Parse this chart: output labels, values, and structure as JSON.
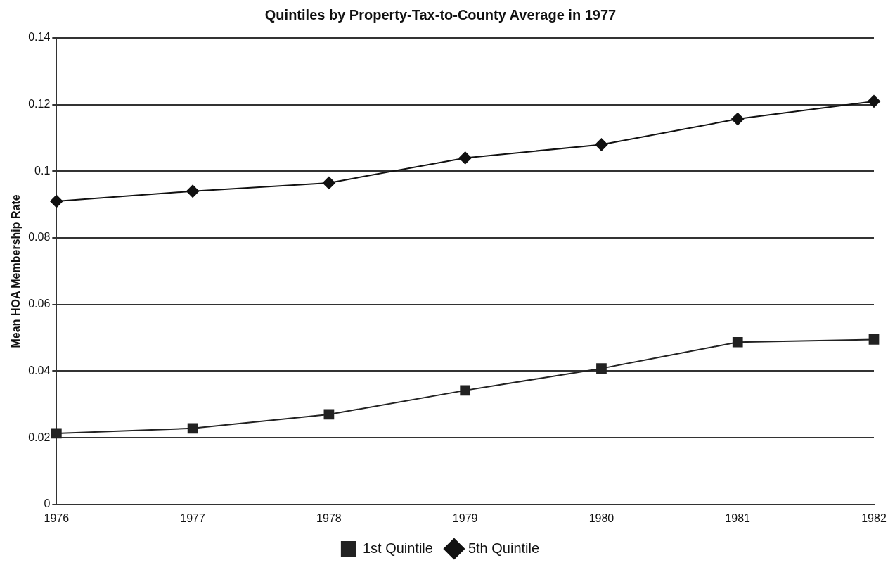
{
  "chart_data": {
    "type": "line",
    "title": "Quintiles by Property-Tax-to-County Average in 1977",
    "ylabel": "Mean HOA Membership Rate",
    "categories": [
      "1976",
      "1977",
      "1978",
      "1979",
      "1980",
      "1981",
      "1982"
    ],
    "series": [
      {
        "name": "1st Quintile",
        "color": "#222222",
        "marker": "square",
        "values": [
          0.0213,
          0.0228,
          0.027,
          0.0342,
          0.0408,
          0.0487,
          0.0495
        ]
      },
      {
        "name": "5th Quintile",
        "color": "#111111",
        "marker": "diamond",
        "values": [
          0.091,
          0.094,
          0.0965,
          0.104,
          0.108,
          0.1157,
          0.121
        ]
      }
    ],
    "ylim": [
      0,
      0.14
    ],
    "yticks": [
      0,
      0.02,
      0.04,
      0.06,
      0.08,
      0.1,
      0.12,
      0.14
    ],
    "grid": "y",
    "legend": "bottom",
    "line_style": "solid"
  }
}
